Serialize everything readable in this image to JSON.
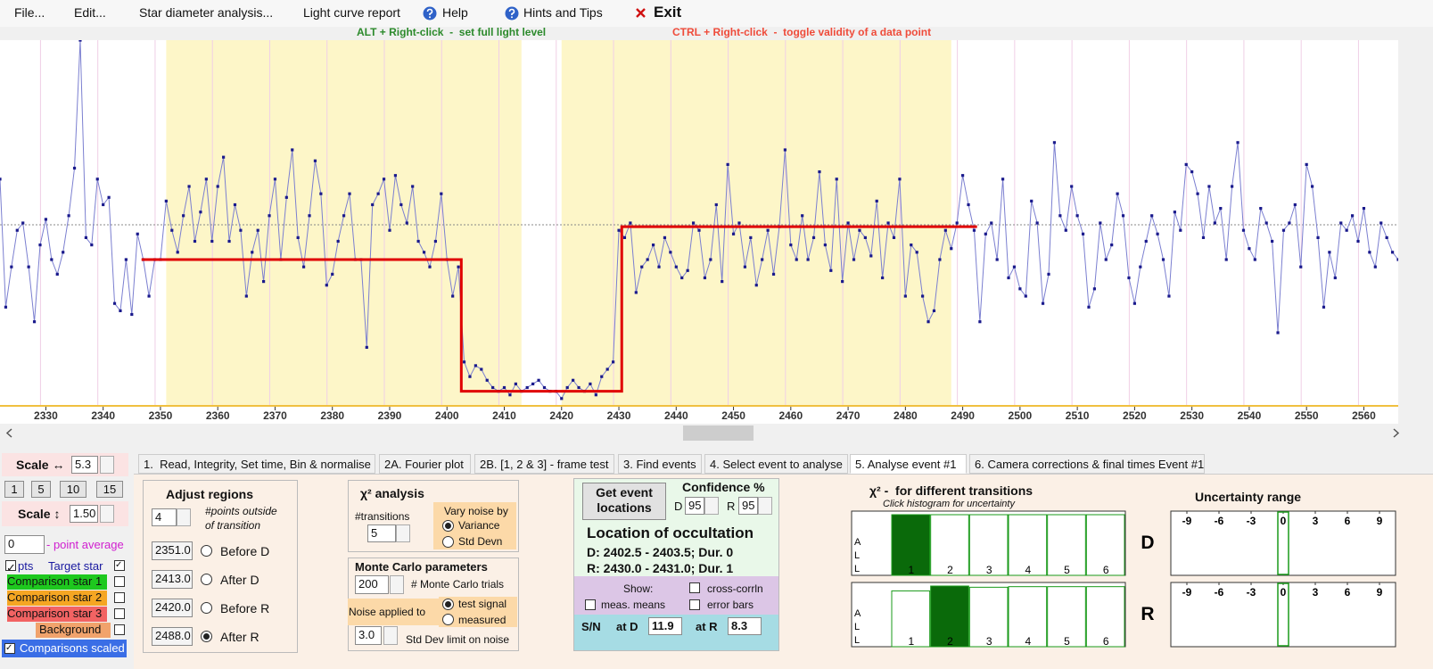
{
  "menu": [
    "File...",
    "Edit...",
    "Star diameter analysis...",
    "Light curve report",
    "Help",
    "Hints and Tips",
    "Exit"
  ],
  "hints": [
    "ALT + Right-click  -  set full light level",
    "CTRL + Right-click  -  toggle validity of a data point"
  ],
  "chart_data": {
    "type": "scatter",
    "color": "#1a1a8c",
    "grid": true,
    "full_light_level": 49.5,
    "xlim": [
      2322,
      2566
    ],
    "ylim": [
      0,
      100
    ],
    "xticks": [
      2330,
      2340,
      2350,
      2360,
      2370,
      2380,
      2390,
      2400,
      2410,
      2420,
      2430,
      2440,
      2450,
      2460,
      2470,
      2480,
      2490,
      2500,
      2510,
      2520,
      2530,
      2540,
      2550,
      2560
    ],
    "regions": [
      {
        "value": 2351,
        "label": "2351.0"
      },
      {
        "value": 2413,
        "label": "2413.0"
      },
      {
        "value": 2420,
        "label": "2420.0"
      },
      {
        "value": 2488,
        "label": "2488.0"
      }
    ],
    "model": {
      "color": "#e00000",
      "x": [
        2346.7,
        2402.5,
        2402.5,
        2430.5,
        2430.5,
        2492.5
      ],
      "values": [
        40,
        40,
        4,
        4,
        49,
        49
      ]
    },
    "x": [
      2322,
      2323,
      2324,
      2325,
      2326,
      2327,
      2328,
      2329,
      2330,
      2331,
      2332,
      2333,
      2334,
      2335,
      2336,
      2337,
      2338,
      2339,
      2340,
      2341,
      2342,
      2343,
      2344,
      2345,
      2346,
      2347,
      2348,
      2349,
      2350,
      2351,
      2352,
      2353,
      2354,
      2355,
      2356,
      2357,
      2358,
      2359,
      2360,
      2361,
      2362,
      2363,
      2364,
      2365,
      2366,
      2367,
      2368,
      2369,
      2370,
      2371,
      2372,
      2373,
      2374,
      2375,
      2376,
      2377,
      2378,
      2379,
      2380,
      2381,
      2382,
      2383,
      2384,
      2385,
      2386,
      2387,
      2388,
      2389,
      2390,
      2391,
      2392,
      2393,
      2394,
      2395,
      2396,
      2397,
      2398,
      2399,
      2400,
      2401,
      2402,
      2403,
      2404,
      2405,
      2406,
      2407,
      2408,
      2409,
      2410,
      2411,
      2412,
      2413,
      2414,
      2415,
      2416,
      2417,
      2418,
      2419,
      2420,
      2421,
      2422,
      2423,
      2424,
      2425,
      2426,
      2427,
      2428,
      2429,
      2430,
      2431,
      2432,
      2433,
      2434,
      2435,
      2436,
      2437,
      2438,
      2439,
      2440,
      2441,
      2442,
      2443,
      2444,
      2445,
      2446,
      2447,
      2448,
      2449,
      2450,
      2451,
      2452,
      2453,
      2454,
      2455,
      2456,
      2457,
      2458,
      2459,
      2460,
      2461,
      2462,
      2463,
      2464,
      2465,
      2466,
      2467,
      2468,
      2469,
      2470,
      2471,
      2472,
      2473,
      2474,
      2475,
      2476,
      2477,
      2478,
      2479,
      2480,
      2481,
      2482,
      2483,
      2484,
      2485,
      2486,
      2487,
      2488,
      2489,
      2490,
      2491,
      2492,
      2493,
      2494,
      2495,
      2496,
      2497,
      2498,
      2499,
      2500,
      2501,
      2502,
      2503,
      2504,
      2505,
      2506,
      2507,
      2508,
      2509,
      2510,
      2511,
      2512,
      2513,
      2514,
      2515,
      2516,
      2517,
      2518,
      2519,
      2520,
      2521,
      2522,
      2523,
      2524,
      2525,
      2526,
      2527,
      2528,
      2529,
      2530,
      2531,
      2532,
      2533,
      2534,
      2535,
      2536,
      2537,
      2538,
      2539,
      2540,
      2541,
      2542,
      2543,
      2544,
      2545,
      2546,
      2547,
      2548,
      2549,
      2550,
      2551,
      2552,
      2553,
      2554,
      2555,
      2556,
      2557,
      2558,
      2559,
      2560,
      2561,
      2562,
      2563,
      2564,
      2565,
      2566
    ],
    "values": [
      62,
      27,
      38,
      48,
      50,
      38,
      23,
      44,
      51,
      40,
      36,
      42,
      52,
      65,
      100,
      46,
      44,
      62,
      55,
      57,
      28,
      26,
      40,
      25,
      47,
      40,
      30,
      40,
      40,
      56,
      48,
      42,
      52,
      60,
      45,
      53,
      62,
      45,
      60,
      68,
      45,
      55,
      48,
      30,
      42,
      48,
      34,
      52,
      62,
      40,
      57,
      70,
      46,
      38,
      52,
      67,
      58,
      33,
      36,
      45,
      52,
      58,
      40,
      40,
      16,
      55,
      58,
      62,
      48,
      63,
      55,
      50,
      60,
      45,
      42,
      38,
      45,
      58,
      40,
      30,
      38,
      12,
      8,
      11,
      10,
      7,
      5,
      4,
      5,
      3,
      6,
      4,
      5,
      6,
      7,
      5,
      4,
      4,
      2,
      5,
      7,
      5,
      4,
      6,
      3,
      8,
      10,
      12,
      48,
      46,
      50,
      31,
      38,
      40,
      44,
      38,
      46,
      42,
      38,
      35,
      37,
      50,
      48,
      35,
      40,
      55,
      34,
      66,
      47,
      50,
      38,
      46,
      33,
      40,
      48,
      36,
      49,
      70,
      44,
      40,
      52,
      40,
      46,
      64,
      44,
      37,
      62,
      34,
      50,
      40,
      48,
      46,
      41,
      56,
      35,
      50,
      46,
      62,
      30,
      44,
      42,
      30,
      23,
      26,
      40,
      48,
      43,
      50,
      63,
      55,
      48,
      23,
      47,
      50,
      40,
      62,
      35,
      38,
      32,
      30,
      56,
      50,
      28,
      36,
      72,
      52,
      48,
      60,
      52,
      47,
      27,
      32,
      50,
      40,
      44,
      58,
      52,
      35,
      28,
      38,
      45,
      52,
      47,
      40,
      30,
      53,
      48,
      66,
      64,
      58,
      46,
      60,
      50,
      54,
      40,
      60,
      72,
      48,
      43,
      40,
      54,
      50,
      45,
      20,
      48,
      50,
      55,
      38,
      66,
      60,
      46,
      27,
      42,
      35,
      50,
      48,
      52,
      45,
      54,
      42,
      38,
      50,
      46,
      42,
      40
    ]
  },
  "scale_panel": {
    "scale_h_label": "Scale ↔",
    "scale_h": "5.3",
    "buttons": [
      "1",
      "5",
      "10",
      "15"
    ],
    "scale_v_label": "Scale ↕",
    "scale_v": "1.50",
    "point_average": "0",
    "point_average_label": "- point average",
    "pts": "pts",
    "target_star": "Target star",
    "comparisons": [
      "Comparison star 1",
      "Comparison star 2",
      "Comparison star 3",
      "Background"
    ],
    "comparisons_scaled": "Comparisons scaled"
  },
  "tabs": [
    "1.  Read, Integrity, Set time, Bin & normalise",
    "2A. Fourier plot",
    "2B. [1, 2 & 3] - frame test",
    "3. Find events",
    "4. Select event to analyse",
    "5. Analyse event #1",
    "6. Camera corrections & final times Event #1"
  ],
  "adjust_regions": {
    "title": "Adjust regions",
    "points_outside": "4",
    "points_outside_label": [
      "#points outside",
      "of transition"
    ],
    "names": [
      "Before D",
      "After D",
      "Before R",
      "After R"
    ]
  },
  "chi2_analysis": {
    "title": "χ² analysis",
    "transitions_label": "#transitions",
    "transitions": "5",
    "vary_label": "Vary noise by",
    "vary_options": [
      "Variance",
      "Std Devn"
    ]
  },
  "monte_carlo": {
    "title": "Monte Carlo parameters",
    "trials": "200",
    "trials_label": "# Monte Carlo trials",
    "noise_label": "Noise applied to",
    "noise_options": [
      "test signal",
      "measured"
    ],
    "limit": "3.0",
    "limit_label": "Std Dev limit on noise"
  },
  "event": {
    "button": "Get event locations",
    "confidence_label": "Confidence %",
    "d_label": "D",
    "d_conf": "95",
    "r_label": "R",
    "r_conf": "95",
    "location_title": "Location of occultation",
    "d_location": "D: 2402.5 - 2403.5; Dur. 0",
    "r_location": "R: 2430.0 - 2431.0; Dur. 1",
    "show_label": "Show:",
    "show_options": [
      "meas. means",
      "cross-corrln",
      "error bars"
    ],
    "sn_label": "S/N",
    "at_d": "at D",
    "sn_d": "11.9",
    "at_r": "at R",
    "sn_r": "8.3"
  },
  "chi2_hist": {
    "title": "χ² -  for different transitions",
    "hint": "Click histogram for uncertainty",
    "axis_letters": [
      "A",
      "L",
      "L"
    ],
    "ylim": [
      0,
      100
    ],
    "categories": [
      1,
      2,
      3,
      4,
      5,
      6
    ],
    "panels": [
      {
        "label": "D",
        "values": [
          100,
          100,
          100,
          100,
          100,
          100
        ],
        "selected": 0
      },
      {
        "label": "R",
        "values": [
          92,
          100,
          98,
          99,
          99,
          99
        ],
        "selected": 1
      }
    ]
  },
  "uncertainty": {
    "title": "Uncertainty range",
    "xlim": [
      -10.5,
      10.5
    ],
    "xticks": [
      -9,
      -6,
      -3,
      0,
      3,
      6,
      9
    ],
    "ranges": [
      [
        -0.5,
        0.5
      ],
      [
        -0.5,
        0.5
      ]
    ]
  }
}
